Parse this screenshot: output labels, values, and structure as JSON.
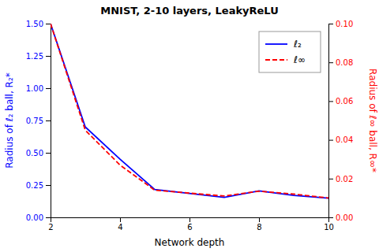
{
  "chart_data": {
    "type": "line",
    "title": "MNIST, 2-10 layers, LeakyReLU",
    "xlabel": "Network depth",
    "ylabel": "Radius of ℓ₂ ball, R₂*",
    "y2label": "Radius of ℓ∞ ball, R∞*",
    "x": [
      2,
      3,
      4,
      5,
      6,
      7,
      8,
      9,
      10
    ],
    "series": [
      {
        "name": "ℓ₂",
        "color": "#0000FF",
        "line_style": "solid",
        "axis": "y",
        "values": [
          1.5,
          0.7,
          0.45,
          0.215,
          0.185,
          0.155,
          0.205,
          0.17,
          0.148
        ]
      },
      {
        "name": "ℓ∞",
        "color": "#FF0000",
        "line_style": "dashed",
        "axis": "y2",
        "values": [
          0.1,
          0.045,
          0.027,
          0.014,
          0.0125,
          0.011,
          0.0135,
          0.012,
          0.01
        ]
      }
    ],
    "xlim": [
      2,
      10
    ],
    "xticks": [
      2,
      4,
      6,
      8,
      10
    ],
    "ylim": [
      0.0,
      1.5
    ],
    "yticks": [
      {
        "value": 0.0,
        "label": "0.00"
      },
      {
        "value": 0.25,
        "label": "0.25"
      },
      {
        "value": 0.5,
        "label": "0.50"
      },
      {
        "value": 0.75,
        "label": "0.75"
      },
      {
        "value": 1.0,
        "label": "1.00"
      },
      {
        "value": 1.25,
        "label": "1.25"
      },
      {
        "value": 1.5,
        "label": "1.50"
      }
    ],
    "y2lim": [
      0.0,
      0.1
    ],
    "y2ticks": [
      {
        "value": 0.0,
        "label": "0.00"
      },
      {
        "value": 0.02,
        "label": "0.02"
      },
      {
        "value": 0.04,
        "label": "0.04"
      },
      {
        "value": 0.06,
        "label": "0.06"
      },
      {
        "value": 0.08,
        "label": "0.08"
      },
      {
        "value": 0.1,
        "label": "0.10"
      }
    ],
    "legend": "upper right",
    "grid": false
  }
}
